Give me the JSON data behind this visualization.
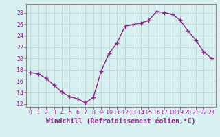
{
  "x": [
    0,
    1,
    2,
    3,
    4,
    5,
    6,
    7,
    8,
    9,
    10,
    11,
    12,
    13,
    14,
    15,
    16,
    17,
    18,
    19,
    20,
    21,
    22,
    23
  ],
  "y": [
    17.5,
    17.3,
    16.5,
    15.3,
    14.1,
    13.3,
    12.9,
    12.2,
    13.2,
    17.8,
    20.9,
    22.7,
    25.6,
    25.9,
    26.2,
    26.6,
    28.2,
    28.0,
    27.7,
    26.7,
    24.8,
    23.2,
    21.1,
    20.0
  ],
  "line_color": "#882288",
  "marker": "+",
  "markersize": 4,
  "linewidth": 1.0,
  "markeredgewidth": 1.0,
  "xlim": [
    -0.5,
    23.5
  ],
  "ylim": [
    11.5,
    29.5
  ],
  "yticks": [
    12,
    14,
    16,
    18,
    20,
    22,
    24,
    26,
    28
  ],
  "xticks": [
    0,
    1,
    2,
    3,
    4,
    5,
    6,
    7,
    8,
    9,
    10,
    11,
    12,
    13,
    14,
    15,
    16,
    17,
    18,
    19,
    20,
    21,
    22,
    23
  ],
  "xlabel": "Windchill (Refroidissement éolien,°C)",
  "background_color": "#d8f0f0",
  "grid_color": "#b8d8d8",
  "tick_color": "#882288",
  "label_color": "#882288",
  "xlabel_fontsize": 7,
  "tick_fontsize": 6,
  "spine_color": "#888888"
}
